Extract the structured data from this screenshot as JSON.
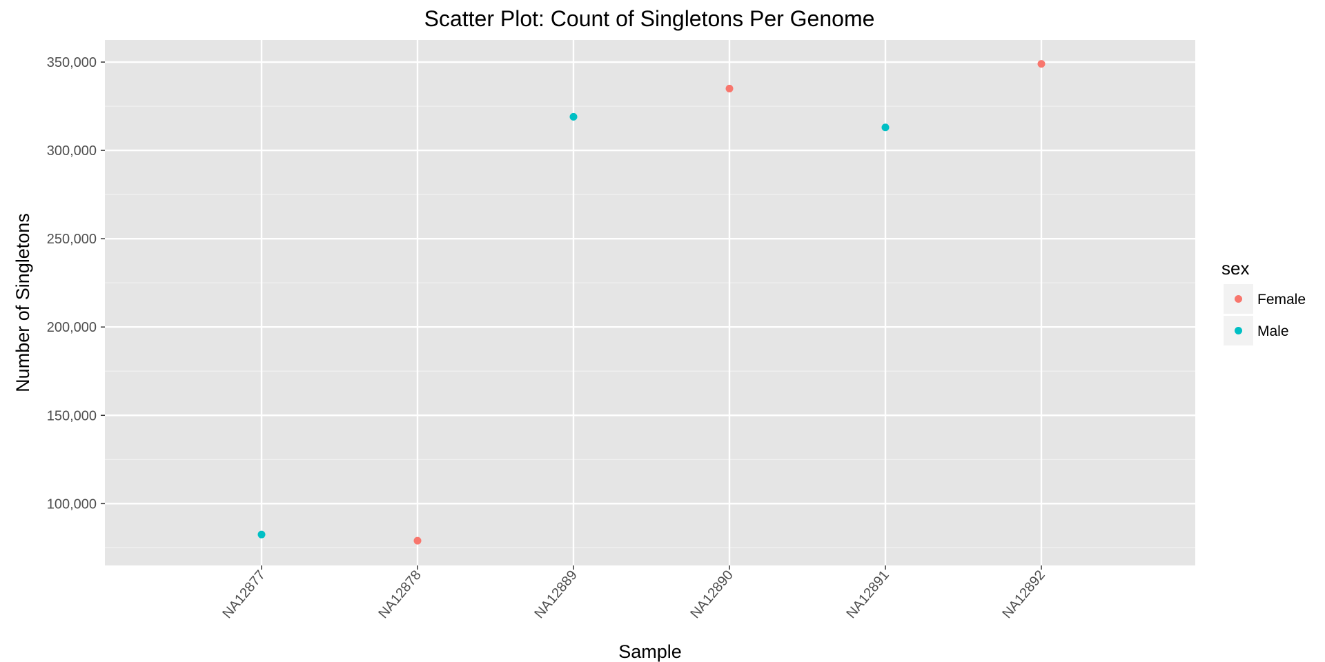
{
  "chart_data": {
    "type": "scatter",
    "title": "Scatter Plot: Count of Singletons Per Genome",
    "xlabel": "Sample",
    "ylabel": "Number of Singletons",
    "categories": [
      "NA12877",
      "NA12878",
      "NA12889",
      "NA12890",
      "NA12891",
      "NA12892"
    ],
    "ylim": [
      65000,
      362500
    ],
    "yticks": [
      100000,
      150000,
      200000,
      250000,
      300000,
      350000
    ],
    "ytick_labels": [
      "100,000",
      "150,000",
      "200,000",
      "250,000",
      "300,000",
      "350,000"
    ],
    "grid": true,
    "legend": {
      "title": "sex",
      "position": "right",
      "entries": [
        {
          "name": "Female",
          "color": "#F8766D"
        },
        {
          "name": "Male",
          "color": "#00BFC4"
        }
      ]
    },
    "points": [
      {
        "x": "NA12877",
        "y": 82500,
        "sex": "Male"
      },
      {
        "x": "NA12878",
        "y": 79000,
        "sex": "Female"
      },
      {
        "x": "NA12889",
        "y": 319000,
        "sex": "Male"
      },
      {
        "x": "NA12890",
        "y": 335000,
        "sex": "Female"
      },
      {
        "x": "NA12891",
        "y": 313000,
        "sex": "Male"
      },
      {
        "x": "NA12892",
        "y": 349000,
        "sex": "Female"
      }
    ]
  }
}
